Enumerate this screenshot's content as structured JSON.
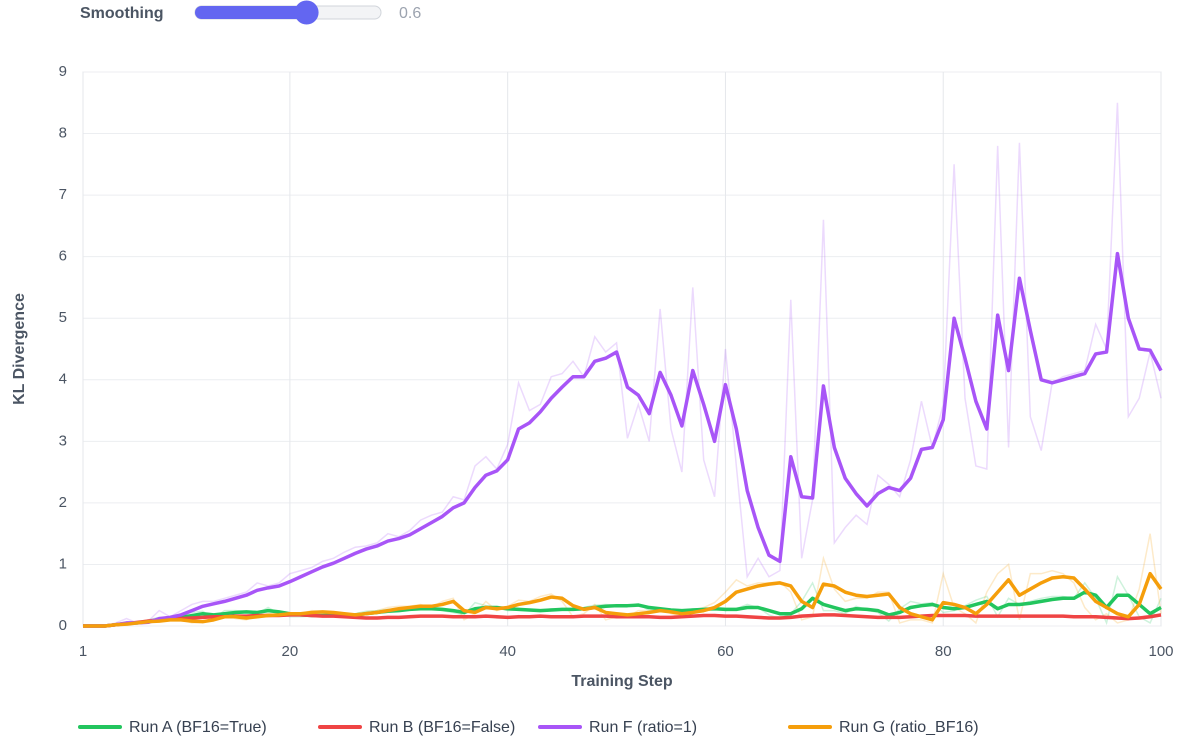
{
  "smoothing": {
    "label": "Smoothing",
    "value": 0.6
  },
  "chart_data": {
    "type": "line",
    "xlabel": "Training Step",
    "ylabel": "KL Divergence",
    "xlim": [
      1,
      100
    ],
    "ylim": [
      0,
      9
    ],
    "xticks": [
      1,
      20,
      40,
      60,
      80,
      100
    ],
    "yticks": [
      0,
      1,
      2,
      3,
      4,
      5,
      6,
      7,
      8,
      9
    ],
    "grid": true,
    "legend": "bottom",
    "x": [
      1,
      2,
      3,
      4,
      5,
      6,
      7,
      8,
      9,
      10,
      11,
      12,
      13,
      14,
      15,
      16,
      17,
      18,
      19,
      20,
      21,
      22,
      23,
      24,
      25,
      26,
      27,
      28,
      29,
      30,
      31,
      32,
      33,
      34,
      35,
      36,
      37,
      38,
      39,
      40,
      41,
      42,
      43,
      44,
      45,
      46,
      47,
      48,
      49,
      50,
      51,
      52,
      53,
      54,
      55,
      56,
      57,
      58,
      59,
      60,
      61,
      62,
      63,
      64,
      65,
      66,
      67,
      68,
      69,
      70,
      71,
      72,
      73,
      74,
      75,
      76,
      77,
      78,
      79,
      80,
      81,
      82,
      83,
      84,
      85,
      86,
      87,
      88,
      89,
      90,
      91,
      92,
      93,
      94,
      95,
      96,
      97,
      98,
      99,
      100
    ],
    "series": [
      {
        "name": "Run A (BF16=True)",
        "color": "#22c55e",
        "values": [
          0,
          0,
          0,
          0.02,
          0.04,
          0.05,
          0.07,
          0.1,
          0.12,
          0.14,
          0.17,
          0.2,
          0.18,
          0.2,
          0.22,
          0.23,
          0.22,
          0.25,
          0.23,
          0.2,
          0.18,
          0.17,
          0.17,
          0.18,
          0.17,
          0.18,
          0.2,
          0.22,
          0.24,
          0.25,
          0.27,
          0.28,
          0.28,
          0.27,
          0.25,
          0.22,
          0.28,
          0.3,
          0.3,
          0.28,
          0.27,
          0.26,
          0.25,
          0.26,
          0.27,
          0.27,
          0.28,
          0.3,
          0.32,
          0.33,
          0.33,
          0.34,
          0.3,
          0.28,
          0.26,
          0.25,
          0.26,
          0.27,
          0.28,
          0.27,
          0.27,
          0.3,
          0.3,
          0.25,
          0.2,
          0.2,
          0.28,
          0.45,
          0.35,
          0.3,
          0.25,
          0.28,
          0.27,
          0.25,
          0.18,
          0.22,
          0.3,
          0.33,
          0.35,
          0.3,
          0.28,
          0.3,
          0.35,
          0.4,
          0.28,
          0.35,
          0.35,
          0.37,
          0.4,
          0.43,
          0.45,
          0.45,
          0.55,
          0.5,
          0.3,
          0.5,
          0.5,
          0.35,
          0.2,
          0.3
        ],
        "raw_values": [
          0,
          0,
          0,
          0.03,
          0.06,
          0.05,
          0.1,
          0.14,
          0.13,
          0.16,
          0.22,
          0.24,
          0.12,
          0.25,
          0.25,
          0.24,
          0.2,
          0.3,
          0.2,
          0.15,
          0.15,
          0.16,
          0.17,
          0.2,
          0.15,
          0.2,
          0.24,
          0.25,
          0.27,
          0.26,
          0.3,
          0.3,
          0.28,
          0.25,
          0.22,
          0.18,
          0.38,
          0.33,
          0.3,
          0.25,
          0.26,
          0.25,
          0.24,
          0.28,
          0.28,
          0.27,
          0.3,
          0.34,
          0.35,
          0.34,
          0.33,
          0.36,
          0.25,
          0.25,
          0.23,
          0.24,
          0.28,
          0.28,
          0.3,
          0.25,
          0.28,
          0.35,
          0.3,
          0.18,
          0.12,
          0.2,
          0.4,
          0.7,
          0.25,
          0.25,
          0.2,
          0.32,
          0.26,
          0.22,
          0.08,
          0.28,
          0.4,
          0.36,
          0.38,
          0.22,
          0.25,
          0.33,
          0.42,
          0.48,
          0.15,
          0.45,
          0.35,
          0.4,
          0.45,
          0.48,
          0.48,
          0.45,
          0.7,
          0.45,
          0.05,
          0.8,
          0.5,
          0.15,
          0.05,
          0.45
        ]
      },
      {
        "name": "Run B (BF16=False)",
        "color": "#ef4444",
        "values": [
          0,
          0,
          0,
          0.02,
          0.04,
          0.06,
          0.08,
          0.1,
          0.11,
          0.12,
          0.13,
          0.14,
          0.15,
          0.15,
          0.16,
          0.16,
          0.17,
          0.17,
          0.17,
          0.18,
          0.18,
          0.17,
          0.16,
          0.16,
          0.15,
          0.14,
          0.13,
          0.13,
          0.14,
          0.14,
          0.15,
          0.16,
          0.16,
          0.16,
          0.15,
          0.15,
          0.15,
          0.16,
          0.15,
          0.14,
          0.15,
          0.15,
          0.16,
          0.15,
          0.15,
          0.15,
          0.16,
          0.16,
          0.16,
          0.15,
          0.15,
          0.15,
          0.15,
          0.14,
          0.14,
          0.15,
          0.16,
          0.17,
          0.17,
          0.16,
          0.16,
          0.15,
          0.14,
          0.13,
          0.13,
          0.14,
          0.16,
          0.17,
          0.18,
          0.18,
          0.17,
          0.16,
          0.15,
          0.14,
          0.14,
          0.14,
          0.15,
          0.16,
          0.17,
          0.17,
          0.17,
          0.17,
          0.16,
          0.16,
          0.16,
          0.16,
          0.16,
          0.16,
          0.16,
          0.16,
          0.16,
          0.15,
          0.15,
          0.15,
          0.14,
          0.13,
          0.12,
          0.13,
          0.15,
          0.18
        ],
        "raw_values": [
          0,
          0,
          0,
          0.03,
          0.05,
          0.07,
          0.1,
          0.12,
          0.11,
          0.13,
          0.14,
          0.15,
          0.16,
          0.14,
          0.17,
          0.16,
          0.18,
          0.17,
          0.16,
          0.19,
          0.18,
          0.15,
          0.15,
          0.16,
          0.14,
          0.13,
          0.12,
          0.14,
          0.15,
          0.13,
          0.17,
          0.17,
          0.15,
          0.16,
          0.14,
          0.15,
          0.16,
          0.17,
          0.13,
          0.13,
          0.17,
          0.15,
          0.17,
          0.14,
          0.15,
          0.16,
          0.17,
          0.16,
          0.15,
          0.14,
          0.16,
          0.15,
          0.14,
          0.13,
          0.15,
          0.16,
          0.17,
          0.18,
          0.16,
          0.15,
          0.16,
          0.13,
          0.13,
          0.12,
          0.14,
          0.15,
          0.18,
          0.18,
          0.19,
          0.17,
          0.16,
          0.15,
          0.14,
          0.13,
          0.15,
          0.14,
          0.16,
          0.17,
          0.18,
          0.16,
          0.17,
          0.16,
          0.15,
          0.17,
          0.16,
          0.15,
          0.17,
          0.16,
          0.16,
          0.15,
          0.16,
          0.14,
          0.16,
          0.14,
          0.13,
          0.11,
          0.12,
          0.15,
          0.17,
          0.2
        ]
      },
      {
        "name": "Run F (ratio=1)",
        "color": "#a855f7",
        "values": [
          0,
          0,
          0,
          0.02,
          0.05,
          0.05,
          0.06,
          0.12,
          0.14,
          0.18,
          0.25,
          0.32,
          0.36,
          0.4,
          0.45,
          0.5,
          0.58,
          0.62,
          0.65,
          0.72,
          0.8,
          0.88,
          0.96,
          1.02,
          1.1,
          1.18,
          1.25,
          1.3,
          1.38,
          1.42,
          1.48,
          1.58,
          1.68,
          1.78,
          1.92,
          2.0,
          2.25,
          2.45,
          2.52,
          2.7,
          3.2,
          3.3,
          3.48,
          3.7,
          3.88,
          4.05,
          4.05,
          4.3,
          4.35,
          4.45,
          3.88,
          3.75,
          3.45,
          4.12,
          3.75,
          3.25,
          4.15,
          3.6,
          3.0,
          3.92,
          3.2,
          2.2,
          1.6,
          1.15,
          1.05,
          2.75,
          2.1,
          2.08,
          3.9,
          2.9,
          2.4,
          2.15,
          1.95,
          2.15,
          2.25,
          2.2,
          2.4,
          2.87,
          2.9,
          3.35,
          5.0,
          4.35,
          3.65,
          3.2,
          5.05,
          4.15,
          5.65,
          4.8,
          4.0,
          3.95,
          4.0,
          4.05,
          4.1,
          4.42,
          4.45,
          6.05,
          5.0,
          4.5,
          4.48,
          4.15
        ],
        "raw_values": [
          0,
          0,
          0,
          0.05,
          0.12,
          0.05,
          0.08,
          0.25,
          0.15,
          0.25,
          0.35,
          0.4,
          0.4,
          0.45,
          0.5,
          0.55,
          0.7,
          0.65,
          0.7,
          0.85,
          0.9,
          0.95,
          1.05,
          1.1,
          1.2,
          1.28,
          1.3,
          1.35,
          1.5,
          1.45,
          1.55,
          1.72,
          1.8,
          1.85,
          2.1,
          2.05,
          2.6,
          2.75,
          2.55,
          2.95,
          3.95,
          3.5,
          3.6,
          4.05,
          4.1,
          4.3,
          4.05,
          4.7,
          4.45,
          4.6,
          3.05,
          3.6,
          3.0,
          5.15,
          3.2,
          2.5,
          5.5,
          2.7,
          2.1,
          4.5,
          2.6,
          0.8,
          1.1,
          0.8,
          0.9,
          5.3,
          1.1,
          2.05,
          6.6,
          1.35,
          1.6,
          1.8,
          1.65,
          2.45,
          2.3,
          2.1,
          2.7,
          3.65,
          2.9,
          3.6,
          7.5,
          3.7,
          2.6,
          2.55,
          7.8,
          2.9,
          7.85,
          3.4,
          2.85,
          3.95,
          4.05,
          4.1,
          4.15,
          4.9,
          4.5,
          8.5,
          3.4,
          3.7,
          4.45,
          3.7
        ]
      },
      {
        "name": "Run G (ratio_BF16)",
        "color": "#f59e0b",
        "values": [
          0,
          0,
          0,
          0.02,
          0.03,
          0.05,
          0.07,
          0.08,
          0.1,
          0.1,
          0.08,
          0.07,
          0.1,
          0.15,
          0.15,
          0.13,
          0.15,
          0.17,
          0.18,
          0.2,
          0.2,
          0.22,
          0.23,
          0.22,
          0.2,
          0.18,
          0.2,
          0.22,
          0.25,
          0.28,
          0.3,
          0.32,
          0.32,
          0.35,
          0.4,
          0.25,
          0.22,
          0.3,
          0.28,
          0.3,
          0.35,
          0.38,
          0.42,
          0.47,
          0.45,
          0.33,
          0.27,
          0.3,
          0.22,
          0.2,
          0.18,
          0.2,
          0.22,
          0.25,
          0.23,
          0.2,
          0.22,
          0.25,
          0.3,
          0.4,
          0.55,
          0.6,
          0.65,
          0.68,
          0.7,
          0.65,
          0.4,
          0.3,
          0.68,
          0.65,
          0.55,
          0.5,
          0.48,
          0.5,
          0.52,
          0.3,
          0.2,
          0.15,
          0.1,
          0.38,
          0.35,
          0.3,
          0.2,
          0.35,
          0.55,
          0.75,
          0.5,
          0.6,
          0.7,
          0.78,
          0.8,
          0.78,
          0.6,
          0.4,
          0.3,
          0.2,
          0.15,
          0.35,
          0.85,
          0.6
        ],
        "raw_values": [
          0,
          0,
          0,
          0.04,
          0.04,
          0.07,
          0.1,
          0.08,
          0.12,
          0.1,
          0.05,
          0.06,
          0.15,
          0.2,
          0.12,
          0.1,
          0.18,
          0.2,
          0.18,
          0.22,
          0.2,
          0.25,
          0.24,
          0.2,
          0.17,
          0.15,
          0.23,
          0.25,
          0.3,
          0.32,
          0.32,
          0.35,
          0.3,
          0.4,
          0.45,
          0.1,
          0.2,
          0.4,
          0.25,
          0.32,
          0.42,
          0.4,
          0.48,
          0.52,
          0.4,
          0.15,
          0.2,
          0.35,
          0.1,
          0.15,
          0.15,
          0.25,
          0.25,
          0.3,
          0.2,
          0.15,
          0.25,
          0.3,
          0.38,
          0.55,
          0.75,
          0.65,
          0.7,
          0.7,
          0.72,
          0.55,
          0.1,
          0.15,
          1.1,
          0.6,
          0.4,
          0.45,
          0.45,
          0.55,
          0.55,
          0.05,
          0.1,
          0.1,
          0.05,
          0.85,
          0.3,
          0.2,
          0.05,
          0.55,
          0.85,
          1.0,
          0.1,
          0.85,
          0.85,
          0.9,
          0.85,
          0.7,
          0.3,
          0.1,
          0.2,
          0.05,
          0.1,
          0.6,
          1.5,
          0.2
        ]
      }
    ]
  }
}
